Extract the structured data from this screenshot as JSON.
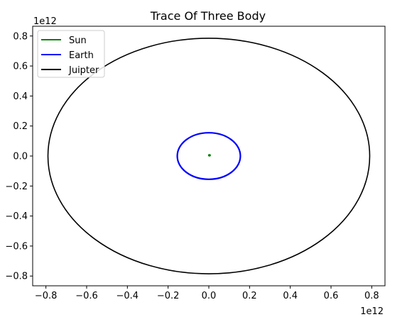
{
  "chart_data": {
    "type": "line",
    "title": "Trace Of Three Body",
    "xlabel": "",
    "ylabel": "",
    "x_offset_label": "1e12",
    "y_offset_label": "1e12",
    "xlim": [
      -0.865,
      0.865
    ],
    "ylim": [
      -0.865,
      0.865
    ],
    "xticks": [
      -0.8,
      -0.6,
      -0.4,
      -0.2,
      0.0,
      0.2,
      0.4,
      0.6,
      0.8
    ],
    "yticks": [
      -0.8,
      -0.6,
      -0.4,
      -0.2,
      0.0,
      0.2,
      0.4,
      0.6,
      0.8
    ],
    "xtick_labels": [
      "−0.8",
      "−0.6",
      "−0.4",
      "−0.2",
      "0.0",
      "0.2",
      "0.4",
      "0.6",
      "0.8"
    ],
    "ytick_labels": [
      "−0.8",
      "−0.6",
      "−0.4",
      "−0.2",
      "0.0",
      "0.2",
      "0.4",
      "0.6",
      "0.8"
    ],
    "grid": false,
    "legend_position": "upper-left",
    "series": [
      {
        "name": "Sun",
        "color": "#008000",
        "shape": "ellipse",
        "center": [
          0.003,
          0.005
        ],
        "radius_x": 0.004,
        "radius_y": 0.004
      },
      {
        "name": "Earth",
        "color": "#0000ff",
        "shape": "ellipse",
        "center": [
          0.0,
          0.0
        ],
        "radius_x": 0.155,
        "radius_y": 0.155
      },
      {
        "name": "Juipter",
        "color": "#000000",
        "shape": "ellipse",
        "center": [
          0.0,
          0.0
        ],
        "radius_x": 0.79,
        "radius_y": 0.785
      }
    ]
  }
}
